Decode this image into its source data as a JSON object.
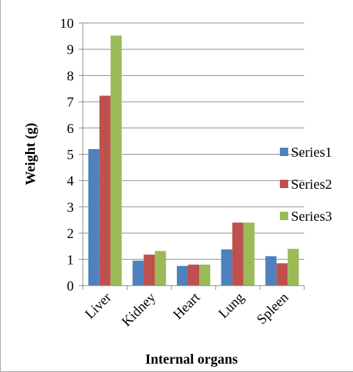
{
  "chart_data": {
    "type": "bar",
    "xlabel": "Internal organs",
    "ylabel": "Weight (g)",
    "categories": [
      "Liver",
      "Kidney",
      "Heart",
      "Lung",
      "Spleen"
    ],
    "series": [
      {
        "name": "Series1",
        "color": "#4f81bd",
        "values": [
          5.2,
          0.95,
          0.75,
          1.38,
          1.12
        ]
      },
      {
        "name": "Series2",
        "color": "#c0504d",
        "values": [
          7.23,
          1.18,
          0.8,
          2.4,
          0.85
        ]
      },
      {
        "name": "Series3",
        "color": "#9bbb59",
        "values": [
          9.52,
          1.32,
          0.8,
          2.4,
          1.4
        ]
      }
    ],
    "ylim": [
      0,
      10
    ],
    "yticks": [
      "0",
      "1",
      "2",
      "3",
      "4",
      "5",
      "6",
      "7",
      "8",
      "9",
      "10"
    ],
    "grid": true,
    "legend_position": "right"
  }
}
